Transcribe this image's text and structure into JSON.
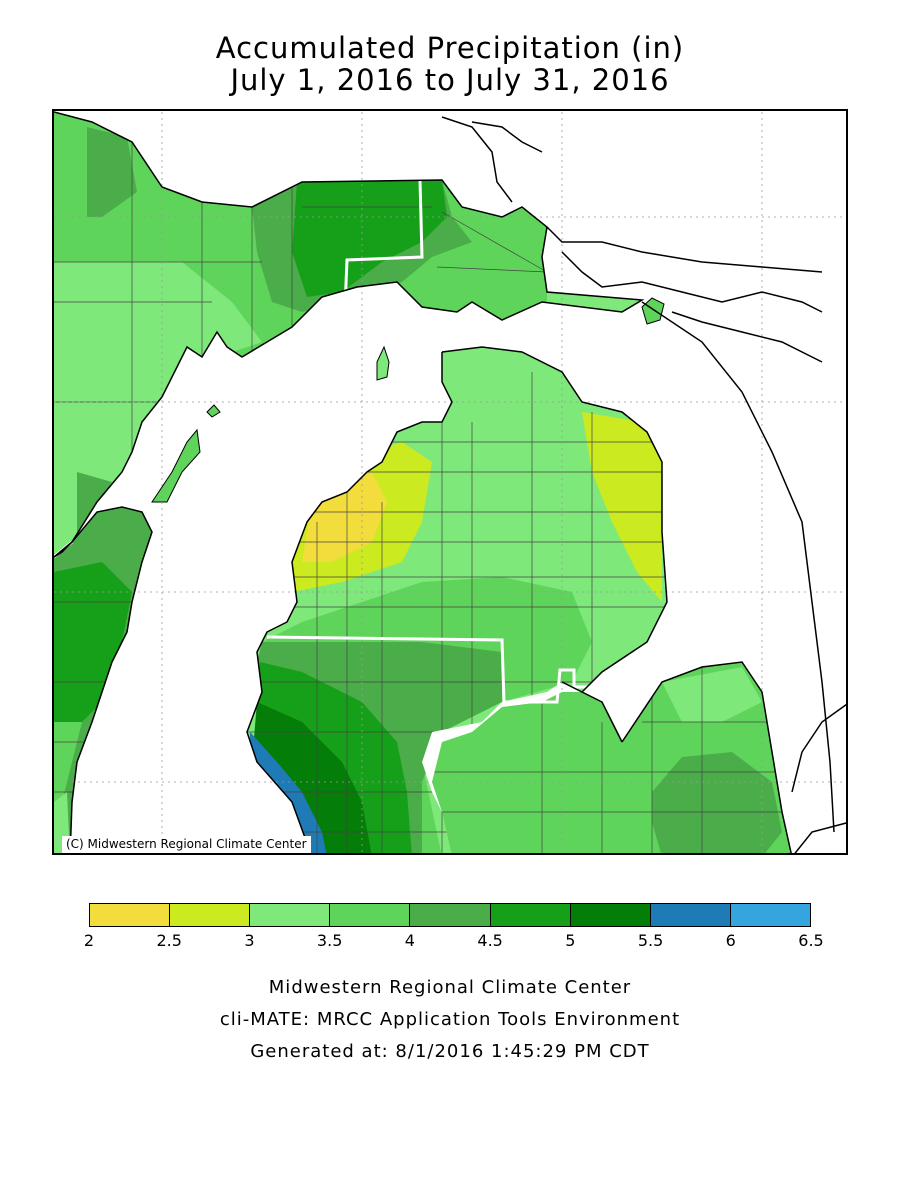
{
  "title": {
    "line1": "Accumulated Precipitation (in)",
    "line2": "July 1, 2016 to July 31, 2016"
  },
  "map": {
    "copyright": "(C) Midwestern Regional Climate Center",
    "background": "#ffffff"
  },
  "legend": {
    "ticks": [
      "2",
      "2.5",
      "3",
      "3.5",
      "4",
      "4.5",
      "5",
      "5.5",
      "6",
      "6.5"
    ],
    "bins": [
      {
        "from": 2,
        "to": 2.5,
        "color": "#f2dd3c"
      },
      {
        "from": 2.5,
        "to": 3,
        "color": "#cbea1f"
      },
      {
        "from": 3,
        "to": 3.5,
        "color": "#7fe87a"
      },
      {
        "from": 3.5,
        "to": 4,
        "color": "#5fd45a"
      },
      {
        "from": 4,
        "to": 4.5,
        "color": "#4aad4a"
      },
      {
        "from": 4.5,
        "to": 5,
        "color": "#16a019"
      },
      {
        "from": 5,
        "to": 5.5,
        "color": "#047d09"
      },
      {
        "from": 5.5,
        "to": 6,
        "color": "#1f7bb5"
      },
      {
        "from": 6,
        "to": 6.5,
        "color": "#35a5e0"
      }
    ]
  },
  "footer": {
    "line1": "Midwestern Regional Climate Center",
    "line2": "cli-MATE: MRCC Application Tools Environment",
    "line3": "Generated at: 8/1/2016 1:45:29 PM CDT"
  }
}
